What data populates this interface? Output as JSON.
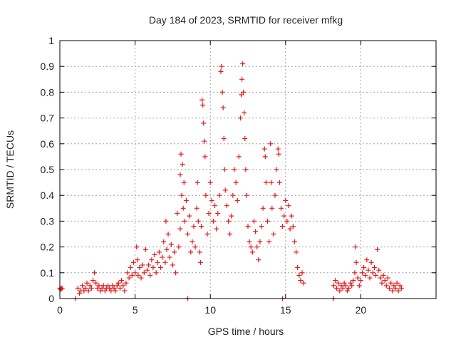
{
  "chart_data": {
    "type": "scatter",
    "title": "Day 184 of 2023, SRMTID for receiver mfkg",
    "xlabel": "GPS time / hours",
    "ylabel": "SRMTID / TECUs",
    "xlim": [
      0,
      25
    ],
    "ylim": [
      0,
      1
    ],
    "xticks": [
      0,
      5,
      10,
      15,
      20
    ],
    "yticks": [
      0,
      0.1,
      0.2,
      0.3,
      0.4,
      0.5,
      0.6,
      0.7,
      0.8,
      0.9,
      1
    ],
    "xtick_labels": [
      "0",
      "5",
      "10",
      "15",
      "20"
    ],
    "ytick_labels": [
      "0",
      "0.1",
      "0.2",
      "0.3",
      "0.4",
      "0.5",
      "0.6",
      "0.7",
      "0.8",
      "0.9",
      "1"
    ],
    "grid": true,
    "marker": "+",
    "colors": {
      "series": "#e41a1c",
      "grid": "#a0a0a0",
      "axis": "#000000"
    },
    "series": [
      {
        "name": "SRMTID",
        "points": [
          [
            0.0,
            0.04
          ],
          [
            0.05,
            0.035
          ],
          [
            0.1,
            0.04
          ],
          [
            0.15,
            0.04
          ],
          [
            1.05,
            0.0
          ],
          [
            8.5,
            0.0
          ],
          [
            14.8,
            0.0
          ],
          [
            18.2,
            0.0
          ],
          [
            1.2,
            0.04
          ],
          [
            1.3,
            0.02
          ],
          [
            1.4,
            0.03
          ],
          [
            1.5,
            0.05
          ],
          [
            1.6,
            0.03
          ],
          [
            1.7,
            0.04
          ],
          [
            1.8,
            0.06
          ],
          [
            1.9,
            0.03
          ],
          [
            2.0,
            0.05
          ],
          [
            2.1,
            0.04
          ],
          [
            2.2,
            0.07
          ],
          [
            2.3,
            0.1
          ],
          [
            2.4,
            0.06
          ],
          [
            2.5,
            0.04
          ],
          [
            2.6,
            0.05
          ],
          [
            2.7,
            0.03
          ],
          [
            2.8,
            0.04
          ],
          [
            2.9,
            0.05
          ],
          [
            3.0,
            0.03
          ],
          [
            3.1,
            0.04
          ],
          [
            3.2,
            0.05
          ],
          [
            3.3,
            0.04
          ],
          [
            3.4,
            0.03
          ],
          [
            3.5,
            0.05
          ],
          [
            3.6,
            0.04
          ],
          [
            3.7,
            0.03
          ],
          [
            3.8,
            0.05
          ],
          [
            3.9,
            0.06
          ],
          [
            4.0,
            0.04
          ],
          [
            4.1,
            0.07
          ],
          [
            4.2,
            0.05
          ],
          [
            4.3,
            0.03
          ],
          [
            4.4,
            0.06
          ],
          [
            4.5,
            0.1
          ],
          [
            4.6,
            0.08
          ],
          [
            4.7,
            0.12
          ],
          [
            4.8,
            0.09
          ],
          [
            4.9,
            0.14
          ],
          [
            5.0,
            0.1
          ],
          [
            5.1,
            0.2
          ],
          [
            5.15,
            0.15
          ],
          [
            5.2,
            0.09
          ],
          [
            5.3,
            0.12
          ],
          [
            5.4,
            0.08
          ],
          [
            5.5,
            0.13
          ],
          [
            5.6,
            0.1
          ],
          [
            5.7,
            0.19
          ],
          [
            5.8,
            0.11
          ],
          [
            5.9,
            0.13
          ],
          [
            6.0,
            0.09
          ],
          [
            6.1,
            0.15
          ],
          [
            6.2,
            0.12
          ],
          [
            6.3,
            0.17
          ],
          [
            6.4,
            0.1
          ],
          [
            6.5,
            0.14
          ],
          [
            6.6,
            0.18
          ],
          [
            6.7,
            0.12
          ],
          [
            6.8,
            0.16
          ],
          [
            6.9,
            0.22
          ],
          [
            7.0,
            0.14
          ],
          [
            7.05,
            0.3
          ],
          [
            7.1,
            0.19
          ],
          [
            7.2,
            0.25
          ],
          [
            7.3,
            0.16
          ],
          [
            7.4,
            0.21
          ],
          [
            7.5,
            0.13
          ],
          [
            7.6,
            0.18
          ],
          [
            7.7,
            0.1
          ],
          [
            7.8,
            0.33
          ],
          [
            7.9,
            0.2
          ],
          [
            8.0,
            0.27
          ],
          [
            8.0,
            0.48
          ],
          [
            8.05,
            0.56
          ],
          [
            8.1,
            0.4
          ],
          [
            8.15,
            0.52
          ],
          [
            8.2,
            0.35
          ],
          [
            8.25,
            0.45
          ],
          [
            8.3,
            0.3
          ],
          [
            8.4,
            0.38
          ],
          [
            8.5,
            0.25
          ],
          [
            8.6,
            0.32
          ],
          [
            8.7,
            0.18
          ],
          [
            8.8,
            0.22
          ],
          [
            8.9,
            0.28
          ],
          [
            9.0,
            0.2
          ],
          [
            9.1,
            0.35
          ],
          [
            9.15,
            0.45
          ],
          [
            9.2,
            0.3
          ],
          [
            9.3,
            0.18
          ],
          [
            9.35,
            0.14
          ],
          [
            9.4,
            0.28
          ],
          [
            9.45,
            0.77
          ],
          [
            9.5,
            0.75
          ],
          [
            9.55,
            0.68
          ],
          [
            9.6,
            0.61
          ],
          [
            9.65,
            0.55
          ],
          [
            9.7,
            0.4
          ],
          [
            9.8,
            0.25
          ],
          [
            9.9,
            0.33
          ],
          [
            10.0,
            0.45
          ],
          [
            10.1,
            0.38
          ],
          [
            10.2,
            0.3
          ],
          [
            10.3,
            0.36
          ],
          [
            10.4,
            0.27
          ],
          [
            10.5,
            0.33
          ],
          [
            10.6,
            0.4
          ],
          [
            10.7,
            0.88
          ],
          [
            10.75,
            0.9
          ],
          [
            10.8,
            0.8
          ],
          [
            10.85,
            0.74
          ],
          [
            10.9,
            0.62
          ],
          [
            10.95,
            0.5
          ],
          [
            11.0,
            0.42
          ],
          [
            11.1,
            0.36
          ],
          [
            11.2,
            0.3
          ],
          [
            11.3,
            0.25
          ],
          [
            11.4,
            0.32
          ],
          [
            11.5,
            0.4
          ],
          [
            11.6,
            0.5
          ],
          [
            11.7,
            0.45
          ],
          [
            11.8,
            0.38
          ],
          [
            11.9,
            0.55
          ],
          [
            12.0,
            0.7
          ],
          [
            12.05,
            0.79
          ],
          [
            12.1,
            0.85
          ],
          [
            12.15,
            0.91
          ],
          [
            12.2,
            0.8
          ],
          [
            12.25,
            0.72
          ],
          [
            12.3,
            0.62
          ],
          [
            12.35,
            0.5
          ],
          [
            12.4,
            0.4
          ],
          [
            12.5,
            0.28
          ],
          [
            12.6,
            0.22
          ],
          [
            12.7,
            0.2
          ],
          [
            12.8,
            0.18
          ],
          [
            12.9,
            0.3
          ],
          [
            13.0,
            0.26
          ],
          [
            13.1,
            0.2
          ],
          [
            13.2,
            0.15
          ],
          [
            13.3,
            0.22
          ],
          [
            13.4,
            0.28
          ],
          [
            13.5,
            0.35
          ],
          [
            13.6,
            0.58
          ],
          [
            13.65,
            0.55
          ],
          [
            13.7,
            0.45
          ],
          [
            13.8,
            0.3
          ],
          [
            13.9,
            0.22
          ],
          [
            14.0,
            0.6
          ],
          [
            14.05,
            0.45
          ],
          [
            14.1,
            0.35
          ],
          [
            14.2,
            0.25
          ],
          [
            14.3,
            0.4
          ],
          [
            14.4,
            0.5
          ],
          [
            14.5,
            0.58
          ],
          [
            14.55,
            0.56
          ],
          [
            14.6,
            0.45
          ],
          [
            14.7,
            0.35
          ],
          [
            14.8,
            0.28
          ],
          [
            14.9,
            0.32
          ],
          [
            15.0,
            0.38
          ],
          [
            15.1,
            0.3
          ],
          [
            15.2,
            0.36
          ],
          [
            15.3,
            0.27
          ],
          [
            15.4,
            0.32
          ],
          [
            15.5,
            0.28
          ],
          [
            15.6,
            0.22
          ],
          [
            15.7,
            0.18
          ],
          [
            15.8,
            0.12
          ],
          [
            15.9,
            0.09
          ],
          [
            16.0,
            0.07
          ],
          [
            16.1,
            0.1
          ],
          [
            16.2,
            0.06
          ],
          [
            18.2,
            0.05
          ],
          [
            18.3,
            0.07
          ],
          [
            18.4,
            0.04
          ],
          [
            18.5,
            0.06
          ],
          [
            18.6,
            0.03
          ],
          [
            18.7,
            0.05
          ],
          [
            18.8,
            0.04
          ],
          [
            18.9,
            0.06
          ],
          [
            19.0,
            0.05
          ],
          [
            19.1,
            0.03
          ],
          [
            19.2,
            0.04
          ],
          [
            19.3,
            0.06
          ],
          [
            19.4,
            0.05
          ],
          [
            19.5,
            0.07
          ],
          [
            19.6,
            0.1
          ],
          [
            19.65,
            0.2
          ],
          [
            19.7,
            0.14
          ],
          [
            19.8,
            0.08
          ],
          [
            19.9,
            0.05
          ],
          [
            20.0,
            0.07
          ],
          [
            20.1,
            0.1
          ],
          [
            20.2,
            0.12
          ],
          [
            20.3,
            0.09
          ],
          [
            20.4,
            0.15
          ],
          [
            20.5,
            0.11
          ],
          [
            20.6,
            0.08
          ],
          [
            20.7,
            0.14
          ],
          [
            20.8,
            0.1
          ],
          [
            20.9,
            0.12
          ],
          [
            21.0,
            0.09
          ],
          [
            21.1,
            0.19
          ],
          [
            21.2,
            0.11
          ],
          [
            21.3,
            0.08
          ],
          [
            21.4,
            0.06
          ],
          [
            21.5,
            0.09
          ],
          [
            21.6,
            0.07
          ],
          [
            21.7,
            0.05
          ],
          [
            21.8,
            0.08
          ],
          [
            21.9,
            0.04
          ],
          [
            22.0,
            0.06
          ],
          [
            22.1,
            0.03
          ],
          [
            22.2,
            0.05
          ],
          [
            22.3,
            0.04
          ],
          [
            22.4,
            0.06
          ],
          [
            22.5,
            0.03
          ],
          [
            22.6,
            0.05
          ],
          [
            22.7,
            0.04
          ]
        ]
      }
    ]
  }
}
